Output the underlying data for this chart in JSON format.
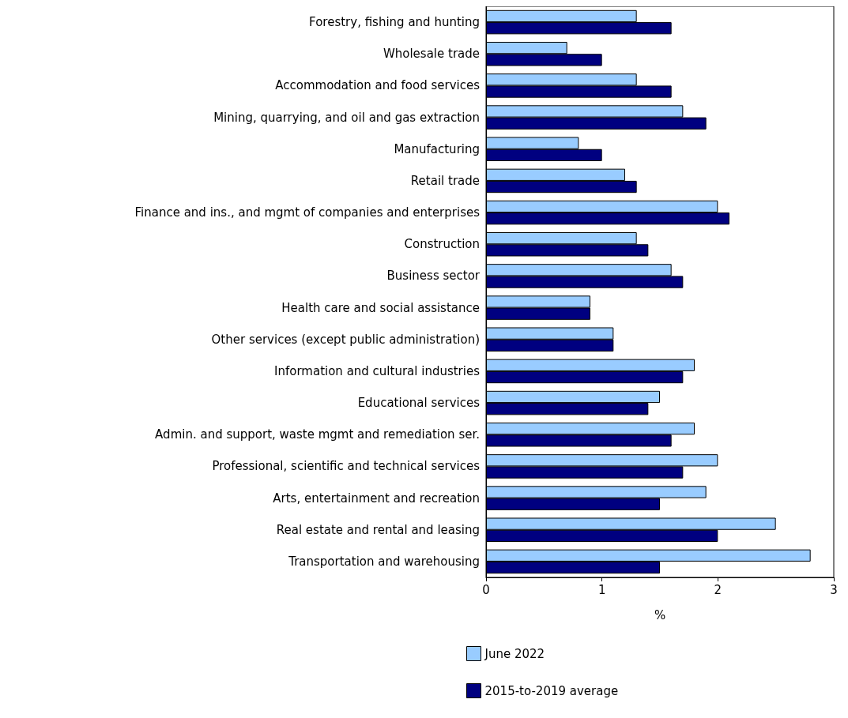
{
  "chart_data": {
    "type": "bar",
    "orientation": "horizontal",
    "xlabel": "%",
    "categories": [
      "Forestry, fishing and hunting",
      "Wholesale trade",
      "Accommodation and food services",
      "Mining, quarrying, and oil and gas extraction",
      "Manufacturing",
      "Retail trade",
      "Finance and ins., and mgmt of companies and enterprises",
      "Construction",
      "Business sector",
      "Health care and social assistance",
      "Other services (except public administration)",
      "Information and cultural industries",
      "Educational services",
      "Admin. and support, waste mgmt and remediation ser.",
      "Professional, scientific and technical services",
      "Arts, entertainment and recreation",
      "Real estate and rental and leasing",
      "Transportation and warehousing"
    ],
    "series": [
      {
        "name": "June 2022",
        "color": "#99ccff",
        "values": [
          1.3,
          0.7,
          1.3,
          1.7,
          0.8,
          1.2,
          2.0,
          1.3,
          1.6,
          0.9,
          1.1,
          1.8,
          1.5,
          1.8,
          2.0,
          1.9,
          2.5,
          2.8
        ]
      },
      {
        "name": "2015-to-2019 average",
        "color": "#000080",
        "values": [
          1.6,
          1.0,
          1.6,
          1.9,
          1.0,
          1.3,
          2.1,
          1.4,
          1.7,
          0.9,
          1.1,
          1.7,
          1.4,
          1.6,
          1.7,
          1.5,
          2.0,
          1.5
        ]
      }
    ],
    "xlim": [
      0,
      3
    ],
    "xticks": [
      0,
      1,
      2,
      3
    ],
    "grid": false,
    "legend": "bottom"
  }
}
